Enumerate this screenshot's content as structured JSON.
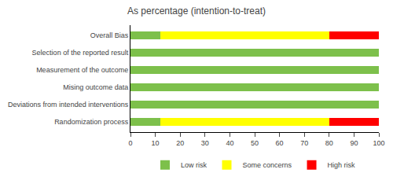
{
  "chart_data": {
    "type": "bar",
    "orientation": "horizontal",
    "stacked": true,
    "title": "As percentage (intention-to-treat)",
    "categories": [
      "Randomization process",
      "Deviations from intended interventions",
      "Mising outcome data",
      "Measurement of the outcome",
      "Selection of the reported result",
      "Overall Bias"
    ],
    "series": [
      {
        "name": "Low risk",
        "color": "#7DC04B",
        "values": [
          12,
          100,
          100,
          100,
          100,
          12
        ]
      },
      {
        "name": "Some concerns",
        "color": "#FFFF00",
        "values": [
          68,
          0,
          0,
          0,
          0,
          68
        ]
      },
      {
        "name": "High risk",
        "color": "#FF0000",
        "values": [
          20,
          0,
          0,
          0,
          0,
          20
        ]
      }
    ],
    "xlim": [
      0,
      100
    ],
    "xticks": [
      0,
      10,
      20,
      30,
      40,
      50,
      60,
      70,
      80,
      90,
      100
    ],
    "grid": false,
    "legend": "bottom"
  }
}
